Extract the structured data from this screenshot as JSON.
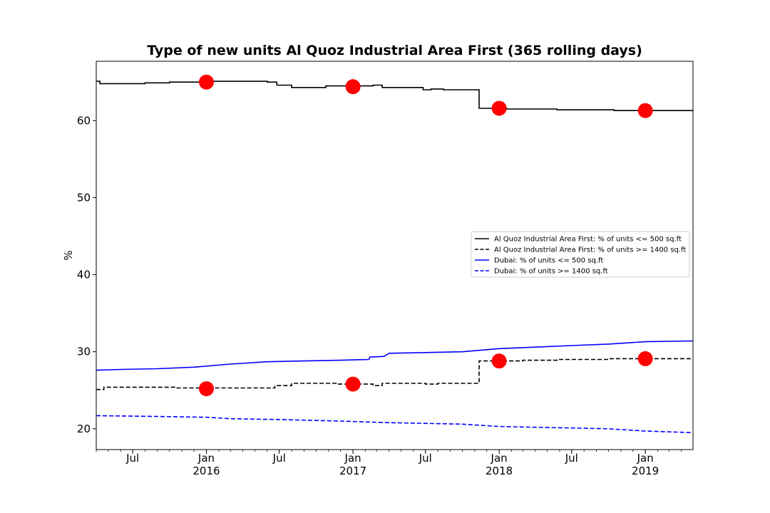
{
  "chart_data": {
    "type": "line",
    "title": "Type of new units Al Quoz Industrial Area First (365 rolling days)",
    "xlabel": "",
    "ylabel": "%",
    "x_range": [
      "2015-04-01",
      "2019-04-30"
    ],
    "ylim": [
      17.3,
      67.7
    ],
    "y_ticks": [
      20,
      30,
      40,
      50,
      60
    ],
    "x_ticks": [
      {
        "date": "2015-07-01",
        "label": "Jul",
        "sublabel": ""
      },
      {
        "date": "2016-01-01",
        "label": "Jan",
        "sublabel": "2016"
      },
      {
        "date": "2016-07-01",
        "label": "Jul",
        "sublabel": ""
      },
      {
        "date": "2017-01-01",
        "label": "Jan",
        "sublabel": "2017"
      },
      {
        "date": "2017-07-01",
        "label": "Jul",
        "sublabel": ""
      },
      {
        "date": "2018-01-01",
        "label": "Jan",
        "sublabel": "2018"
      },
      {
        "date": "2018-07-01",
        "label": "Jul",
        "sublabel": ""
      },
      {
        "date": "2019-01-01",
        "label": "Jan",
        "sublabel": "2019"
      }
    ],
    "grid": false,
    "legend_position": "center-right",
    "series": [
      {
        "name": "Al Quoz Industrial Area First: % of units <= 500 sq.ft",
        "color": "#000000",
        "dash": "solid",
        "step": true,
        "points": [
          [
            "2015-04-01",
            65.1
          ],
          [
            "2015-04-10",
            64.8
          ],
          [
            "2015-08-01",
            64.9
          ],
          [
            "2015-10-01",
            65.0
          ],
          [
            "2015-12-15",
            65.1
          ],
          [
            "2016-06-01",
            65.0
          ],
          [
            "2016-06-25",
            64.6
          ],
          [
            "2016-08-01",
            64.3
          ],
          [
            "2016-10-25",
            64.5
          ],
          [
            "2017-02-20",
            64.6
          ],
          [
            "2017-03-15",
            64.3
          ],
          [
            "2017-06-25",
            64.0
          ],
          [
            "2017-07-15",
            64.1
          ],
          [
            "2017-08-15",
            64.0
          ],
          [
            "2017-11-12",
            61.6
          ],
          [
            "2018-01-20",
            61.5
          ],
          [
            "2018-03-15",
            61.5
          ],
          [
            "2018-05-25",
            61.4
          ],
          [
            "2018-10-15",
            61.3
          ],
          [
            "2019-04-30",
            61.3
          ]
        ],
        "markers": [
          {
            "date": "2016-01-01",
            "value": 65.0
          },
          {
            "date": "2017-01-01",
            "value": 64.4
          },
          {
            "date": "2018-01-01",
            "value": 61.6
          },
          {
            "date": "2019-01-01",
            "value": 61.3
          }
        ]
      },
      {
        "name": "Al Quoz Industrial Area First: % of units >= 1400 sq.ft",
        "color": "#000000",
        "dash": "dashed",
        "step": true,
        "points": [
          [
            "2015-04-01",
            25.1
          ],
          [
            "2015-04-20",
            25.4
          ],
          [
            "2015-10-15",
            25.3
          ],
          [
            "2016-06-20",
            25.6
          ],
          [
            "2016-08-01",
            25.9
          ],
          [
            "2016-11-20",
            25.8
          ],
          [
            "2017-02-20",
            25.6
          ],
          [
            "2017-03-15",
            25.9
          ],
          [
            "2017-07-01",
            25.8
          ],
          [
            "2017-08-01",
            25.9
          ],
          [
            "2017-11-12",
            28.8
          ],
          [
            "2018-03-01",
            28.9
          ],
          [
            "2018-06-01",
            29.0
          ],
          [
            "2018-10-01",
            29.1
          ],
          [
            "2019-04-30",
            29.1
          ]
        ],
        "markers": [
          {
            "date": "2016-01-01",
            "value": 25.2
          },
          {
            "date": "2017-01-01",
            "value": 25.8
          },
          {
            "date": "2018-01-01",
            "value": 28.8
          },
          {
            "date": "2019-01-01",
            "value": 29.1
          }
        ]
      },
      {
        "name": "Dubai: % of units <= 500 sq.ft",
        "color": "#0000ff",
        "dash": "solid",
        "step": false,
        "points": [
          [
            "2015-04-01",
            27.6
          ],
          [
            "2015-06-01",
            27.7
          ],
          [
            "2015-09-01",
            27.8
          ],
          [
            "2015-12-01",
            28.0
          ],
          [
            "2016-03-01",
            28.4
          ],
          [
            "2016-06-01",
            28.7
          ],
          [
            "2016-09-01",
            28.8
          ],
          [
            "2016-12-01",
            28.9
          ],
          [
            "2017-02-10",
            29.0
          ],
          [
            "2017-02-12",
            29.3
          ],
          [
            "2017-03-20",
            29.4
          ],
          [
            "2017-04-01",
            29.8
          ],
          [
            "2017-07-01",
            29.9
          ],
          [
            "2017-10-01",
            30.0
          ],
          [
            "2018-01-01",
            30.4
          ],
          [
            "2018-04-01",
            30.6
          ],
          [
            "2018-07-01",
            30.8
          ],
          [
            "2018-10-01",
            31.0
          ],
          [
            "2019-01-01",
            31.3
          ],
          [
            "2019-04-30",
            31.4
          ]
        ]
      },
      {
        "name": "Dubai: % of units >= 1400 sq.ft",
        "color": "#0000ff",
        "dash": "dashed",
        "step": false,
        "points": [
          [
            "2015-04-01",
            21.7
          ],
          [
            "2015-09-01",
            21.6
          ],
          [
            "2016-01-01",
            21.5
          ],
          [
            "2016-03-01",
            21.3
          ],
          [
            "2016-07-01",
            21.2
          ],
          [
            "2016-12-01",
            21.0
          ],
          [
            "2017-04-01",
            20.8
          ],
          [
            "2017-10-01",
            20.6
          ],
          [
            "2018-01-01",
            20.3
          ],
          [
            "2018-07-01",
            20.1
          ],
          [
            "2018-10-01",
            20.0
          ],
          [
            "2019-01-01",
            19.7
          ],
          [
            "2019-04-30",
            19.5
          ]
        ]
      }
    ]
  }
}
